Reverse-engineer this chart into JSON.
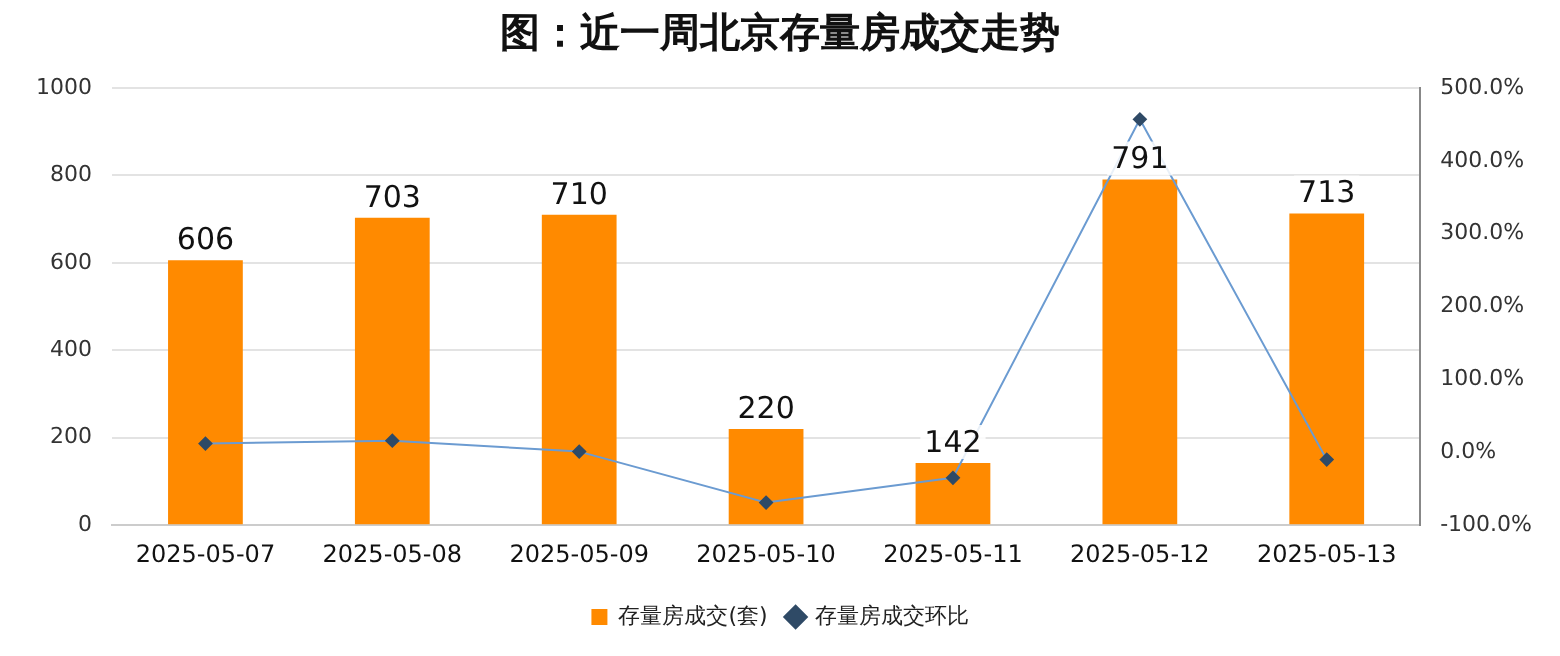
{
  "chart_data": {
    "type": "bar",
    "title": "图：近一周北京存量房成交走势",
    "categories": [
      "2025-05-07",
      "2025-05-08",
      "2025-05-09",
      "2025-05-10",
      "2025-05-11",
      "2025-05-12",
      "2025-05-13"
    ],
    "series": [
      {
        "name": "存量房成交(套)",
        "color": "#ff8a00",
        "values": [
          606,
          703,
          710,
          220,
          142,
          791,
          713
        ],
        "value_labels": [
          "606",
          "703",
          "710",
          "220",
          "142",
          "791",
          "713"
        ]
      },
      {
        "name": "存量房成交环比",
        "type": "line",
        "axis": "y2",
        "color": "#6b9bd1",
        "marker": "diamond",
        "values": [
          12,
          16,
          1,
          -69,
          -35,
          457,
          -10
        ]
      }
    ],
    "ylim": [
      0,
      1000
    ],
    "yticks": [
      0,
      200,
      400,
      600,
      800,
      1000
    ],
    "y2lim": [
      -100,
      500
    ],
    "y2ticks": [
      {
        "value": -100,
        "label": "-100.0%"
      },
      {
        "value": 0,
        "label": "0.0%"
      },
      {
        "value": 100,
        "label": "100.0%"
      },
      {
        "value": 200,
        "label": "200.0%"
      },
      {
        "value": 300,
        "label": "300.0%"
      },
      {
        "value": 400,
        "label": "400.0%"
      },
      {
        "value": 500,
        "label": "500.0%"
      }
    ],
    "grid": "y",
    "legend": "bottom"
  }
}
